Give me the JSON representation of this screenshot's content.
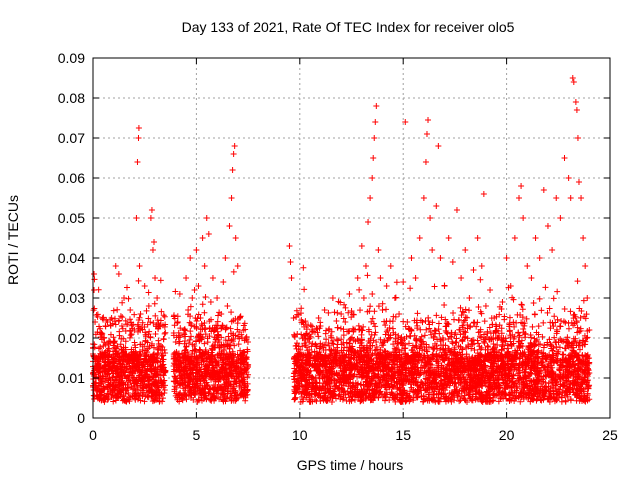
{
  "chart_data": {
    "type": "scatter",
    "title": "Day 133 of 2021, Rate Of TEC Index for receiver olo5",
    "xlabel": "GPS time / hours",
    "ylabel": "ROTI / TECUs",
    "xlim": [
      0,
      25
    ],
    "ylim": [
      0,
      0.09
    ],
    "xticks": [
      0,
      5,
      10,
      15,
      20,
      25
    ],
    "yticks": [
      0,
      0.01,
      0.02,
      0.03,
      0.04,
      0.05,
      0.06,
      0.07,
      0.08,
      0.09
    ],
    "xtick_labels": [
      "0",
      "5",
      "10",
      "15",
      "20",
      "25"
    ],
    "ytick_labels": [
      "0",
      "0.01",
      "0.02",
      "0.03",
      "0.04",
      "0.05",
      "0.06",
      "0.07",
      "0.08",
      "0.09"
    ],
    "grid": true,
    "marker": "plus",
    "color": "#ff0000",
    "series": [
      {
        "values_note_free": true,
        "points": [
          [
            0.0,
            0.011
          ],
          [
            0.05,
            0.036
          ],
          [
            0.05,
            0.032
          ],
          [
            0.1,
            0.024
          ],
          [
            0.2,
            0.015
          ],
          [
            0.3,
            0.012
          ],
          [
            0.4,
            0.009
          ],
          [
            0.5,
            0.018
          ],
          [
            0.6,
            0.023
          ],
          [
            0.7,
            0.011
          ],
          [
            0.8,
            0.008
          ],
          [
            0.9,
            0.025
          ],
          [
            1.0,
            0.014
          ],
          [
            1.1,
            0.038
          ],
          [
            1.2,
            0.016
          ],
          [
            1.3,
            0.01
          ],
          [
            1.4,
            0.023
          ],
          [
            1.5,
            0.03
          ],
          [
            1.6,
            0.012
          ],
          [
            1.7,
            0.009
          ],
          [
            1.8,
            0.027
          ],
          [
            1.9,
            0.015
          ],
          [
            2.0,
            0.022
          ],
          [
            2.1,
            0.05
          ],
          [
            2.15,
            0.064
          ],
          [
            2.2,
            0.07
          ],
          [
            2.22,
            0.0725
          ],
          [
            2.25,
            0.038
          ],
          [
            2.3,
            0.026
          ],
          [
            2.4,
            0.017
          ],
          [
            2.5,
            0.033
          ],
          [
            2.6,
            0.011
          ],
          [
            2.7,
            0.028
          ],
          [
            2.8,
            0.05
          ],
          [
            2.85,
            0.052
          ],
          [
            2.9,
            0.042
          ],
          [
            2.95,
            0.044
          ],
          [
            3.0,
            0.035
          ],
          [
            3.1,
            0.03
          ],
          [
            3.2,
            0.018
          ],
          [
            3.3,
            0.012
          ],
          [
            3.4,
            0.009
          ],
          [
            3.9,
            0.013
          ],
          [
            4.0,
            0.019
          ],
          [
            4.1,
            0.024
          ],
          [
            4.2,
            0.031
          ],
          [
            4.3,
            0.016
          ],
          [
            4.4,
            0.022
          ],
          [
            4.5,
            0.035
          ],
          [
            4.6,
            0.027
          ],
          [
            4.7,
            0.04
          ],
          [
            4.8,
            0.03
          ],
          [
            4.9,
            0.018
          ],
          [
            5.0,
            0.042
          ],
          [
            5.1,
            0.033
          ],
          [
            5.2,
            0.025
          ],
          [
            5.3,
            0.045
          ],
          [
            5.4,
            0.038
          ],
          [
            5.5,
            0.05
          ],
          [
            5.6,
            0.046
          ],
          [
            5.7,
            0.029
          ],
          [
            5.8,
            0.035
          ],
          [
            5.9,
            0.022
          ],
          [
            6.0,
            0.03
          ],
          [
            6.1,
            0.019
          ],
          [
            6.2,
            0.026
          ],
          [
            6.3,
            0.034
          ],
          [
            6.4,
            0.04
          ],
          [
            6.5,
            0.028
          ],
          [
            6.6,
            0.048
          ],
          [
            6.7,
            0.055
          ],
          [
            6.75,
            0.062
          ],
          [
            6.8,
            0.066
          ],
          [
            6.85,
            0.068
          ],
          [
            6.9,
            0.045
          ],
          [
            7.0,
            0.038
          ],
          [
            7.1,
            0.025
          ],
          [
            7.2,
            0.016
          ],
          [
            9.5,
            0.043
          ],
          [
            9.55,
            0.039
          ],
          [
            9.6,
            0.035
          ],
          [
            9.7,
            0.025
          ],
          [
            9.8,
            0.018
          ],
          [
            9.9,
            0.014
          ],
          [
            10.0,
            0.012
          ],
          [
            10.2,
            0.02
          ],
          [
            10.4,
            0.016
          ],
          [
            10.6,
            0.022
          ],
          [
            10.8,
            0.018
          ],
          [
            11.0,
            0.023
          ],
          [
            11.2,
            0.027
          ],
          [
            11.4,
            0.022
          ],
          [
            11.6,
            0.03
          ],
          [
            11.8,
            0.016
          ],
          [
            12.0,
            0.026
          ],
          [
            12.2,
            0.024
          ],
          [
            12.4,
            0.031
          ],
          [
            12.6,
            0.022
          ],
          [
            12.8,
            0.035
          ],
          [
            13.0,
            0.043
          ],
          [
            13.1,
            0.03
          ],
          [
            13.2,
            0.038
          ],
          [
            13.3,
            0.049
          ],
          [
            13.4,
            0.055
          ],
          [
            13.5,
            0.06
          ],
          [
            13.55,
            0.065
          ],
          [
            13.6,
            0.07
          ],
          [
            13.65,
            0.074
          ],
          [
            13.7,
            0.078
          ],
          [
            13.8,
            0.042
          ],
          [
            13.9,
            0.035
          ],
          [
            14.0,
            0.027
          ],
          [
            14.2,
            0.033
          ],
          [
            14.4,
            0.038
          ],
          [
            14.6,
            0.03
          ],
          [
            14.8,
            0.026
          ],
          [
            15.0,
            0.034
          ],
          [
            15.1,
            0.074
          ],
          [
            15.2,
            0.024
          ],
          [
            15.4,
            0.04
          ],
          [
            15.6,
            0.035
          ],
          [
            15.8,
            0.045
          ],
          [
            16.0,
            0.055
          ],
          [
            16.1,
            0.064
          ],
          [
            16.15,
            0.071
          ],
          [
            16.2,
            0.0745
          ],
          [
            16.3,
            0.05
          ],
          [
            16.4,
            0.042
          ],
          [
            16.6,
            0.053
          ],
          [
            16.7,
            0.068
          ],
          [
            16.8,
            0.04
          ],
          [
            17.0,
            0.033
          ],
          [
            17.2,
            0.045
          ],
          [
            17.4,
            0.039
          ],
          [
            17.6,
            0.052
          ],
          [
            17.8,
            0.035
          ],
          [
            18.0,
            0.042
          ],
          [
            18.2,
            0.03
          ],
          [
            18.4,
            0.037
          ],
          [
            18.6,
            0.045
          ],
          [
            18.8,
            0.038
          ],
          [
            18.9,
            0.056
          ],
          [
            19.0,
            0.028
          ],
          [
            19.2,
            0.032
          ],
          [
            19.4,
            0.025
          ],
          [
            19.6,
            0.02
          ],
          [
            19.8,
            0.029
          ],
          [
            20.0,
            0.04
          ],
          [
            20.2,
            0.033
          ],
          [
            20.4,
            0.045
          ],
          [
            20.6,
            0.055
          ],
          [
            20.7,
            0.058
          ],
          [
            20.8,
            0.05
          ],
          [
            21.0,
            0.038
          ],
          [
            21.2,
            0.035
          ],
          [
            21.4,
            0.045
          ],
          [
            21.6,
            0.04
          ],
          [
            21.8,
            0.057
          ],
          [
            22.0,
            0.048
          ],
          [
            22.2,
            0.042
          ],
          [
            22.4,
            0.055
          ],
          [
            22.6,
            0.05
          ],
          [
            22.8,
            0.065
          ],
          [
            23.0,
            0.06
          ],
          [
            23.1,
            0.055
          ],
          [
            23.2,
            0.085
          ],
          [
            23.25,
            0.084
          ],
          [
            23.35,
            0.079
          ],
          [
            23.4,
            0.077
          ],
          [
            23.45,
            0.07
          ],
          [
            23.5,
            0.059
          ],
          [
            23.6,
            0.055
          ],
          [
            23.7,
            0.045
          ],
          [
            23.8,
            0.038
          ],
          [
            23.9,
            0.03
          ],
          [
            24.0,
            0.022
          ]
        ]
      }
    ],
    "segments": [
      {
        "x_from": 0.0,
        "x_to": 3.5
      },
      {
        "x_from": 3.9,
        "x_to": 7.5
      },
      {
        "x_from": 9.7,
        "x_to": 12.7
      },
      {
        "x_from": 12.7,
        "x_to": 24.0
      }
    ]
  }
}
